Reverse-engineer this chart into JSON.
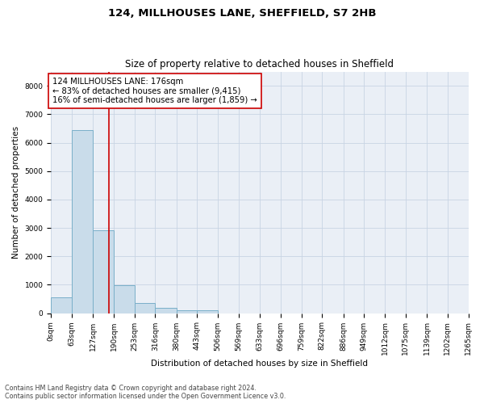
{
  "title_line1": "124, MILLHOUSES LANE, SHEFFIELD, S7 2HB",
  "title_line2": "Size of property relative to detached houses in Sheffield",
  "xlabel": "Distribution of detached houses by size in Sheffield",
  "ylabel": "Number of detached properties",
  "footer_line1": "Contains HM Land Registry data © Crown copyright and database right 2024.",
  "footer_line2": "Contains public sector information licensed under the Open Government Licence v3.0.",
  "bar_edges": [
    0,
    63,
    127,
    190,
    253,
    316,
    380,
    443,
    506,
    569,
    633,
    696,
    759,
    822,
    886,
    949,
    1012,
    1075,
    1139,
    1202,
    1265
  ],
  "bar_values": [
    560,
    6430,
    2920,
    980,
    360,
    175,
    110,
    100,
    0,
    0,
    0,
    0,
    0,
    0,
    0,
    0,
    0,
    0,
    0,
    0
  ],
  "bar_color": "#c9dcea",
  "bar_edgecolor": "#7aafc9",
  "bar_linewidth": 0.7,
  "vline_x": 176,
  "vline_color": "#cc0000",
  "vline_linewidth": 1.2,
  "annotation_text": "124 MILLHOUSES LANE: 176sqm\n← 83% of detached houses are smaller (9,415)\n16% of semi-detached houses are larger (1,859) →",
  "annotation_box_edgecolor": "#cc0000",
  "annotation_box_facecolor": "white",
  "ylim_max": 8500,
  "yticks": [
    0,
    1000,
    2000,
    3000,
    4000,
    5000,
    6000,
    7000,
    8000
  ],
  "grid_color": "#c8d4e4",
  "bg_color": "#eaeff6",
  "title_fontsize": 9.5,
  "subtitle_fontsize": 8.5,
  "axis_label_fontsize": 7.5,
  "tick_fontsize": 6.5,
  "annotation_fontsize": 7.2,
  "footer_fontsize": 5.8
}
